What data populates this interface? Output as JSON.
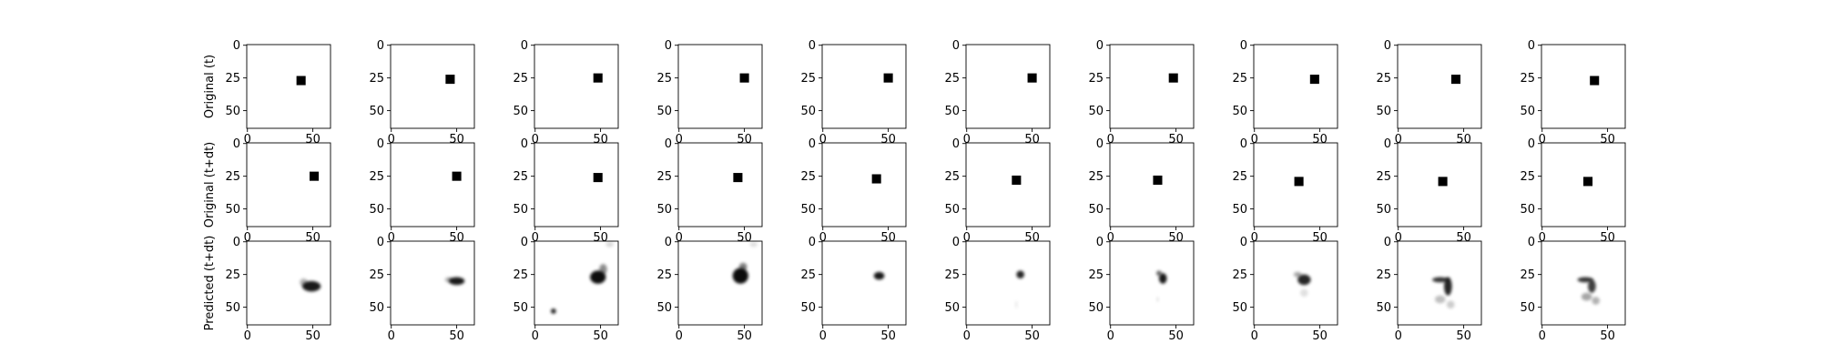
{
  "figure": {
    "row_labels": [
      "Original (t)",
      "Original (t+dt)",
      "Predicted (t+dt)"
    ]
  },
  "chart_data": {
    "type": "heatmap",
    "title": "",
    "grid": false,
    "colormap": "gray_r",
    "image_size": 64,
    "xlim": [
      -0.5,
      63.5
    ],
    "ylim": [
      63.5,
      -0.5
    ],
    "x_ticks": [
      0,
      50
    ],
    "y_ticks": [
      0,
      25,
      50
    ],
    "rows": [
      {
        "label": "Original (t)",
        "panels": [
          {
            "index": 1,
            "square_center": [
              41,
              27
            ],
            "square_size": 7
          },
          {
            "index": 2,
            "square_center": [
              45,
              26
            ],
            "square_size": 7
          },
          {
            "index": 3,
            "square_center": [
              48,
              25
            ],
            "square_size": 7
          },
          {
            "index": 4,
            "square_center": [
              50,
              25
            ],
            "square_size": 7
          },
          {
            "index": 5,
            "square_center": [
              50,
              25
            ],
            "square_size": 7
          },
          {
            "index": 6,
            "square_center": [
              50,
              25
            ],
            "square_size": 7
          },
          {
            "index": 7,
            "square_center": [
              48,
              25
            ],
            "square_size": 7
          },
          {
            "index": 8,
            "square_center": [
              46,
              26
            ],
            "square_size": 7
          },
          {
            "index": 9,
            "square_center": [
              44,
              26
            ],
            "square_size": 7
          },
          {
            "index": 10,
            "square_center": [
              40,
              27
            ],
            "square_size": 7
          }
        ]
      },
      {
        "label": "Original (t+dt)",
        "panels": [
          {
            "index": 1,
            "square_center": [
              51,
              25
            ],
            "square_size": 7
          },
          {
            "index": 2,
            "square_center": [
              50,
              25
            ],
            "square_size": 7
          },
          {
            "index": 3,
            "square_center": [
              48,
              26
            ],
            "square_size": 7
          },
          {
            "index": 4,
            "square_center": [
              45,
              26
            ],
            "square_size": 7
          },
          {
            "index": 5,
            "square_center": [
              41,
              27
            ],
            "square_size": 7
          },
          {
            "index": 6,
            "square_center": [
              38,
              28
            ],
            "square_size": 7
          },
          {
            "index": 7,
            "square_center": [
              36,
              28
            ],
            "square_size": 7
          },
          {
            "index": 8,
            "square_center": [
              34,
              29
            ],
            "square_size": 7
          },
          {
            "index": 9,
            "square_center": [
              34,
              29
            ],
            "square_size": 7
          },
          {
            "index": 10,
            "square_center": [
              35,
              29
            ],
            "square_size": 7
          }
        ]
      },
      {
        "label": "Predicted (t+dt)",
        "panels": [
          {
            "index": 1,
            "blobs": [
              {
                "x": 49,
                "y": 34,
                "rx": 7,
                "ry": 4,
                "opacity": 0.9
              },
              {
                "x": 43,
                "y": 31,
                "rx": 3,
                "ry": 3,
                "opacity": 0.3
              }
            ]
          },
          {
            "index": 2,
            "blobs": [
              {
                "x": 50,
                "y": 30,
                "rx": 6,
                "ry": 3,
                "opacity": 0.9
              },
              {
                "x": 44,
                "y": 29,
                "rx": 3,
                "ry": 2,
                "opacity": 0.3
              }
            ]
          },
          {
            "index": 3,
            "blobs": [
              {
                "x": 48,
                "y": 27,
                "rx": 6,
                "ry": 5,
                "opacity": 0.95
              },
              {
                "x": 52,
                "y": 21,
                "rx": 3,
                "ry": 4,
                "opacity": 0.45
              },
              {
                "x": 57,
                "y": 2,
                "rx": 3,
                "ry": 2,
                "opacity": 0.15
              },
              {
                "x": 14,
                "y": 53,
                "rx": 2,
                "ry": 2,
                "opacity": 0.85
              }
            ]
          },
          {
            "index": 4,
            "blobs": [
              {
                "x": 47,
                "y": 26,
                "rx": 6,
                "ry": 6,
                "opacity": 0.95
              },
              {
                "x": 49,
                "y": 19,
                "rx": 3,
                "ry": 3,
                "opacity": 0.5
              },
              {
                "x": 57,
                "y": 2,
                "rx": 3,
                "ry": 2,
                "opacity": 0.12
              }
            ]
          },
          {
            "index": 5,
            "blobs": [
              {
                "x": 43,
                "y": 26,
                "rx": 4,
                "ry": 3,
                "opacity": 0.9
              }
            ]
          },
          {
            "index": 6,
            "blobs": [
              {
                "x": 41,
                "y": 25,
                "rx": 3,
                "ry": 3,
                "opacity": 0.85
              },
              {
                "x": 38,
                "y": 48,
                "rx": 1,
                "ry": 3,
                "opacity": 0.08
              }
            ]
          },
          {
            "index": 7,
            "blobs": [
              {
                "x": 40,
                "y": 28,
                "rx": 3,
                "ry": 4,
                "opacity": 0.9
              },
              {
                "x": 37,
                "y": 24,
                "rx": 2,
                "ry": 2,
                "opacity": 0.6
              },
              {
                "x": 36,
                "y": 44,
                "rx": 1,
                "ry": 2,
                "opacity": 0.1
              }
            ]
          },
          {
            "index": 8,
            "blobs": [
              {
                "x": 38,
                "y": 29,
                "rx": 5,
                "ry": 4,
                "opacity": 0.85
              },
              {
                "x": 33,
                "y": 25,
                "rx": 3,
                "ry": 2,
                "opacity": 0.35
              },
              {
                "x": 38,
                "y": 39,
                "rx": 3,
                "ry": 3,
                "opacity": 0.12
              }
            ]
          },
          {
            "index": 9,
            "blobs": [
              {
                "x": 32,
                "y": 29,
                "rx": 6,
                "ry": 2,
                "opacity": 0.8
              },
              {
                "x": 38,
                "y": 34,
                "rx": 3,
                "ry": 7,
                "opacity": 0.85
              },
              {
                "x": 32,
                "y": 44,
                "rx": 4,
                "ry": 3,
                "opacity": 0.25
              },
              {
                "x": 40,
                "y": 48,
                "rx": 3,
                "ry": 3,
                "opacity": 0.2
              }
            ]
          },
          {
            "index": 10,
            "blobs": [
              {
                "x": 33,
                "y": 29,
                "rx": 6,
                "ry": 2,
                "opacity": 0.8
              },
              {
                "x": 38,
                "y": 34,
                "rx": 3,
                "ry": 5,
                "opacity": 0.75
              },
              {
                "x": 34,
                "y": 42,
                "rx": 4,
                "ry": 3,
                "opacity": 0.35
              },
              {
                "x": 41,
                "y": 45,
                "rx": 3,
                "ry": 3,
                "opacity": 0.3
              }
            ]
          }
        ]
      }
    ]
  }
}
